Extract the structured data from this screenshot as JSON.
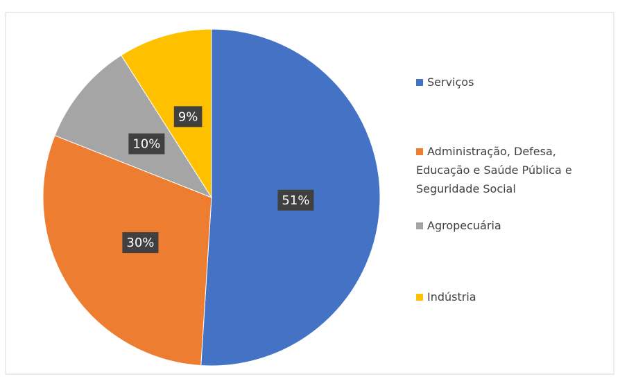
{
  "chart_data": {
    "type": "pie",
    "categories": [
      "Serviços",
      "Administração, Defesa, Educação e Saúde Pública e Seguridade Social",
      "Agropecuária",
      "Indústria"
    ],
    "values": [
      51,
      30,
      10,
      9
    ],
    "value_labels": [
      "51%",
      "30%",
      "10%",
      "9%"
    ],
    "colors": [
      "#4472c4",
      "#ed7d31",
      "#a5a5a5",
      "#ffc000"
    ],
    "legend": "right"
  }
}
